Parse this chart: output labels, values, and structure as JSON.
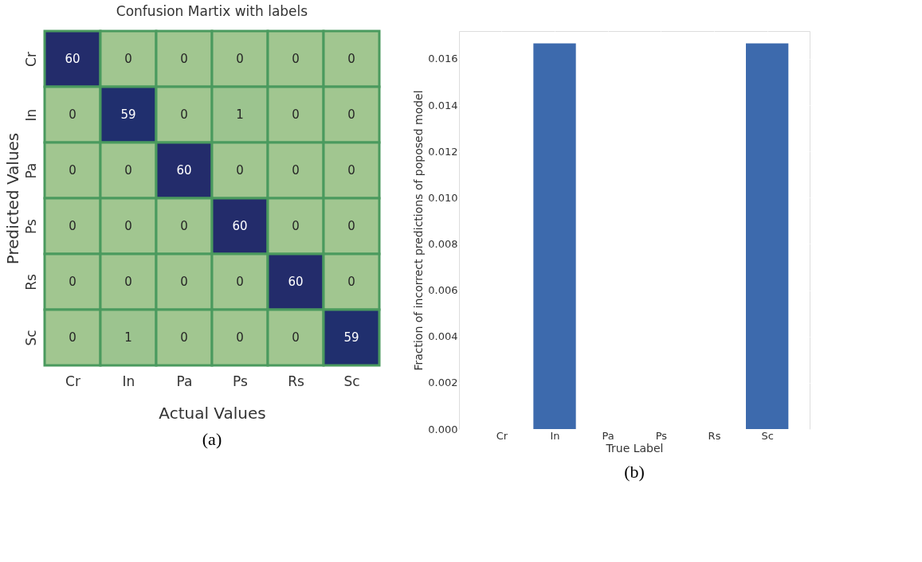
{
  "chart_data": [
    {
      "type": "heatmap",
      "title": "Confusion Martix with labels",
      "xlabel": "Actual Values",
      "ylabel": "Predicted Values",
      "categories": [
        "Cr",
        "In",
        "Pa",
        "Ps",
        "Rs",
        "Sc"
      ],
      "y_categories": [
        "Cr",
        "In",
        "Pa",
        "Ps",
        "Rs",
        "Sc"
      ],
      "cells": [
        [
          60,
          0,
          0,
          0,
          0,
          0
        ],
        [
          0,
          59,
          0,
          1,
          0,
          0
        ],
        [
          0,
          0,
          60,
          0,
          0,
          0
        ],
        [
          0,
          0,
          0,
          60,
          0,
          0
        ],
        [
          0,
          0,
          0,
          0,
          60,
          0
        ],
        [
          0,
          1,
          0,
          0,
          0,
          59
        ]
      ],
      "data_labels": true,
      "annotations": [
        "(a)"
      ]
    },
    {
      "type": "bar",
      "xlabel": "True Label",
      "ylabel": "Fraction of incorrect predictions of poposed model",
      "categories": [
        "Cr",
        "In",
        "Pa",
        "Ps",
        "Rs",
        "Sc"
      ],
      "values": [
        0,
        0.01667,
        0,
        0,
        0,
        0.01667
      ],
      "color": "#3d6aad",
      "ylim": [
        0,
        0.0172
      ],
      "yticks": [
        {
          "value": 0,
          "label": "0.000"
        },
        {
          "value": 0.002,
          "label": "0.002"
        },
        {
          "value": 0.004,
          "label": "0.004"
        },
        {
          "value": 0.006,
          "label": "0.006"
        },
        {
          "value": 0.008,
          "label": "0.008"
        },
        {
          "value": 0.01,
          "label": "0.010"
        },
        {
          "value": 0.012,
          "label": "0.012"
        },
        {
          "value": 0.014,
          "label": "0.014"
        },
        {
          "value": 0.016,
          "label": "0.016"
        }
      ],
      "grid": true,
      "annotations": [
        "(b)"
      ]
    }
  ]
}
